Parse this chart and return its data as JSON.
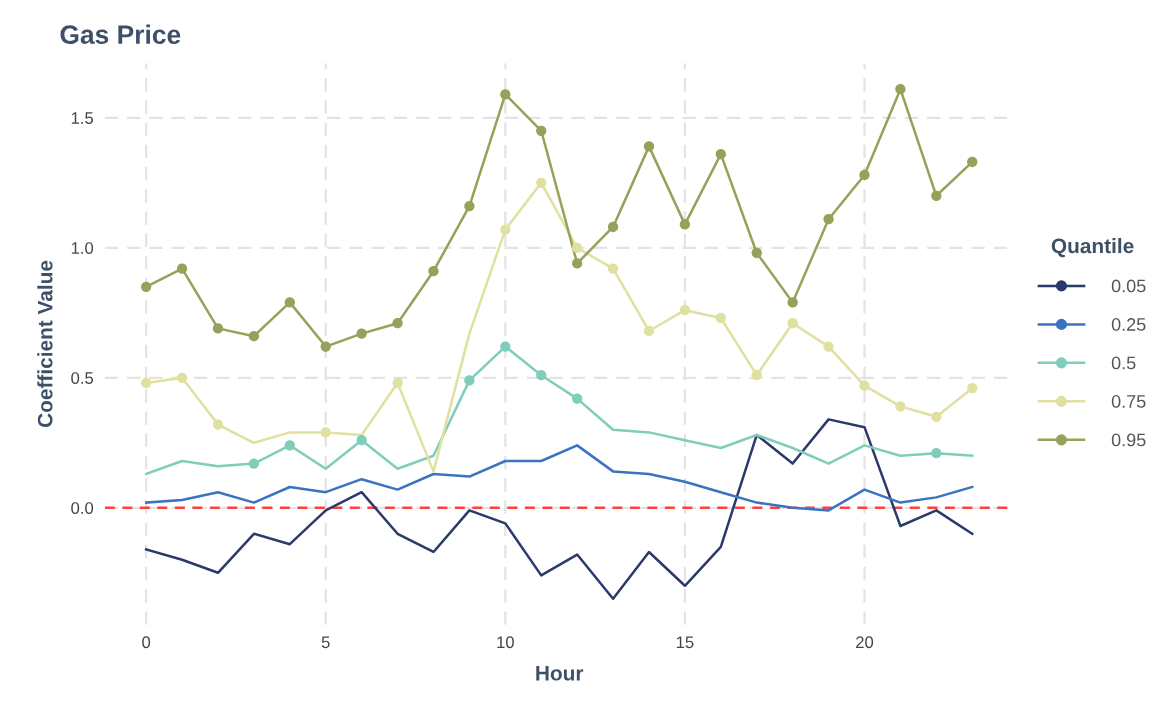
{
  "chart_data": {
    "type": "line",
    "title": "Gas Price",
    "xlabel": "Hour",
    "ylabel": "Coefficient Value",
    "legend_title": "Quantile",
    "x": [
      0,
      1,
      2,
      3,
      4,
      5,
      6,
      7,
      8,
      9,
      10,
      11,
      12,
      13,
      14,
      15,
      16,
      17,
      18,
      19,
      20,
      21,
      22,
      23
    ],
    "series": [
      {
        "name": "0.05",
        "color": "#2b3a6b",
        "marker": "none",
        "values": [
          -0.16,
          -0.2,
          -0.25,
          -0.1,
          -0.14,
          -0.01,
          0.06,
          -0.1,
          -0.17,
          -0.01,
          -0.06,
          -0.26,
          -0.18,
          -0.35,
          -0.17,
          -0.3,
          -0.15,
          0.28,
          0.17,
          0.34,
          0.31,
          -0.07,
          -0.01,
          -0.1
        ]
      },
      {
        "name": "0.25",
        "color": "#3a73c0",
        "marker": "none",
        "values": [
          0.02,
          0.03,
          0.06,
          0.02,
          0.08,
          0.06,
          0.11,
          0.07,
          0.13,
          0.12,
          0.18,
          0.18,
          0.24,
          0.14,
          0.13,
          0.1,
          0.06,
          0.02,
          0.0,
          -0.01,
          0.07,
          0.02,
          0.04,
          0.08
        ]
      },
      {
        "name": "0.5",
        "color": "#7fcdbb",
        "marker": "none",
        "values": [
          0.13,
          0.18,
          0.16,
          0.17,
          0.24,
          0.15,
          0.26,
          0.15,
          0.2,
          0.49,
          0.62,
          0.51,
          0.42,
          0.3,
          0.29,
          0.26,
          0.23,
          0.28,
          0.23,
          0.17,
          0.24,
          0.2,
          0.21,
          0.2
        ]
      },
      {
        "name": "0.75",
        "color": "#e0e0a0",
        "marker": "none",
        "values": [
          0.48,
          0.5,
          0.32,
          0.25,
          0.29,
          0.29,
          0.28,
          0.48,
          0.14,
          0.67,
          1.07,
          1.25,
          1.0,
          0.92,
          0.68,
          0.76,
          0.73,
          0.51,
          0.71,
          0.62,
          0.47,
          0.39,
          0.35,
          0.46
        ]
      },
      {
        "name": "0.95",
        "color": "#98a05a",
        "marker": "none",
        "values": [
          0.85,
          0.92,
          0.69,
          0.66,
          0.79,
          0.62,
          0.67,
          0.71,
          0.91,
          1.16,
          1.59,
          1.45,
          0.94,
          1.08,
          1.39,
          1.09,
          1.36,
          0.98,
          0.79,
          1.11,
          1.28,
          1.61,
          1.2,
          1.33
        ]
      },
      {
        "type": "scatter",
        "marker": "circle",
        "color": "#7fcdbb",
        "x": [
          3,
          4,
          6,
          9,
          10,
          11,
          12,
          22
        ],
        "values": [
          0.17,
          0.24,
          0.26,
          0.49,
          0.62,
          0.51,
          0.42,
          0.21
        ]
      },
      {
        "type": "scatter",
        "marker": "circle",
        "color": "#e0e0a0",
        "x": [
          0,
          1,
          2,
          5,
          7,
          10,
          11,
          12,
          13,
          14,
          15,
          16,
          17,
          18,
          19,
          20,
          21,
          22,
          23
        ],
        "values": [
          0.48,
          0.5,
          0.32,
          0.29,
          0.48,
          1.07,
          1.25,
          1.0,
          0.92,
          0.68,
          0.76,
          0.73,
          0.51,
          0.71,
          0.62,
          0.47,
          0.39,
          0.35,
          0.46
        ]
      },
      {
        "type": "scatter",
        "marker": "circle",
        "color": "#98a05a",
        "x": [
          0,
          1,
          2,
          3,
          4,
          5,
          6,
          7,
          8,
          9,
          10,
          11,
          12,
          13,
          14,
          15,
          16,
          17,
          18,
          19,
          20,
          21,
          22,
          23
        ],
        "values": [
          0.85,
          0.92,
          0.69,
          0.66,
          0.79,
          0.62,
          0.67,
          0.71,
          0.91,
          1.16,
          1.59,
          1.45,
          0.94,
          1.08,
          1.39,
          1.09,
          1.36,
          0.98,
          0.79,
          1.11,
          1.28,
          1.61,
          1.2,
          1.33
        ]
      }
    ],
    "xlim": [
      -1.15,
      24.15
    ],
    "xticks": [
      0,
      5,
      10,
      15,
      20
    ],
    "ylim": [
      -0.45,
      1.71
    ],
    "yticks": [
      {
        "value": 0,
        "label": "0.0"
      },
      0.5,
      {
        "value": 1,
        "label": "1.0"
      },
      1.5
    ],
    "ref_lines": [
      {
        "axis": "y",
        "value": 0,
        "color": "#ff4040",
        "line_style": "dashed"
      }
    ],
    "grid": true,
    "legend": "right"
  }
}
